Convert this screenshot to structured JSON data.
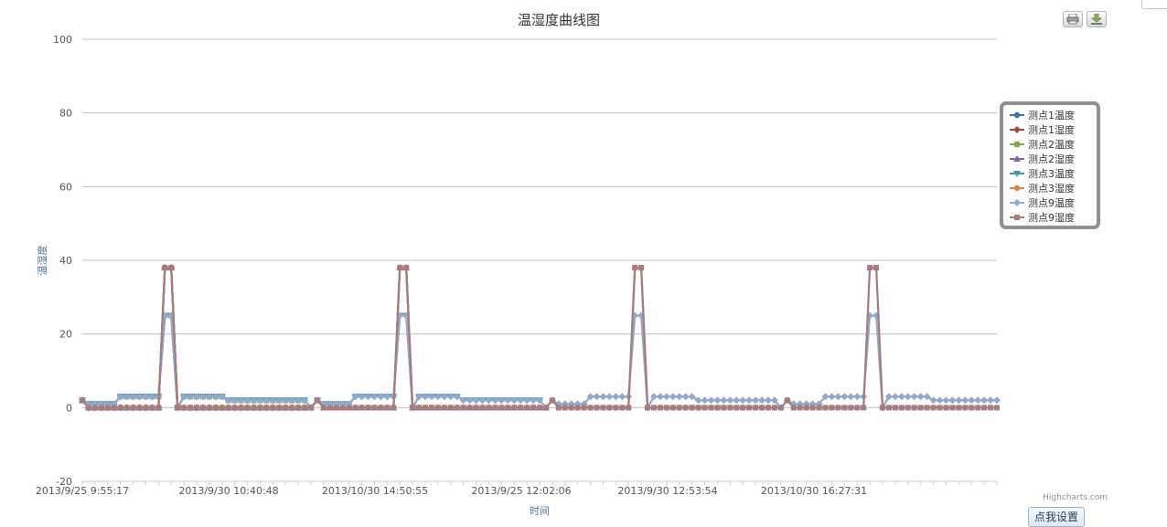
{
  "chart_data": {
    "type": "line",
    "title": "温湿度曲线图",
    "ylabel": "温湿度",
    "xlabel": "时间",
    "ylim": [
      -20,
      100
    ],
    "yticks": [
      -20,
      0,
      20,
      40,
      60,
      80,
      100
    ],
    "grid": true,
    "legend_position": "right",
    "x_tick_labels": [
      "2013/9/25 9:55:17",
      "2013/9/30 10:40:48",
      "2013/10/30 14:50:55",
      "2013/9/25 12:02:06",
      "2013/9/30 12:53:54",
      "2013/10/30 16:27:31"
    ],
    "point_count": 145,
    "peaks": {
      "temperature_peak_value": 25,
      "humidity_peak_value": 38,
      "peak_indices": [
        [
          13,
          14
        ],
        [
          50,
          51
        ],
        [
          87,
          88
        ],
        [
          124,
          125
        ]
      ],
      "base_humidity": 0,
      "start_value": 2,
      "dips": [
        37,
        74,
        111
      ]
    },
    "temperature_segments": [
      {
        "from": 0,
        "to": 5,
        "value": 1
      },
      {
        "from": 6,
        "to": 12,
        "value": 3
      },
      {
        "from": 16,
        "to": 22,
        "value": 3
      },
      {
        "from": 23,
        "to": 35,
        "value": 2
      },
      {
        "from": 38,
        "to": 42,
        "value": 1
      },
      {
        "from": 43,
        "to": 49,
        "value": 3
      },
      {
        "from": 53,
        "to": 59,
        "value": 3
      },
      {
        "from": 60,
        "to": 72,
        "value": 2
      },
      {
        "from": 75,
        "to": 79,
        "value": 1
      },
      {
        "from": 80,
        "to": 86,
        "value": 3
      },
      {
        "from": 90,
        "to": 96,
        "value": 3
      },
      {
        "from": 97,
        "to": 109,
        "value": 2
      },
      {
        "from": 112,
        "to": 116,
        "value": 1
      },
      {
        "from": 117,
        "to": 123,
        "value": 3
      },
      {
        "from": 127,
        "to": 133,
        "value": 3
      },
      {
        "from": 134,
        "to": 144,
        "value": 2
      }
    ],
    "series": [
      {
        "name": "测点1温度",
        "color": "#4572A7",
        "marker": "circle",
        "kind": "temperature",
        "end": 35
      },
      {
        "name": "测点1湿度",
        "color": "#AA4643",
        "marker": "diamond",
        "kind": "humidity",
        "end": 36
      },
      {
        "name": "测点2温度",
        "color": "#89A54E",
        "marker": "square",
        "kind": "temperature",
        "end": 35
      },
      {
        "name": "测点2湿度",
        "color": "#80699B",
        "marker": "triangle",
        "kind": "humidity",
        "end": 73
      },
      {
        "name": "测点3温度",
        "color": "#3D96AE",
        "marker": "triangle-down",
        "kind": "temperature",
        "end": 72
      },
      {
        "name": "测点3湿度",
        "color": "#DB843D",
        "marker": "circle",
        "kind": "humidity",
        "end": 110
      },
      {
        "name": "测点9温度",
        "color": "#92A8CD",
        "marker": "diamond",
        "kind": "temperature",
        "end": 144
      },
      {
        "name": "测点9湿度",
        "color": "#A47D7C",
        "marker": "square",
        "kind": "humidity",
        "end": 144
      }
    ]
  },
  "ui": {
    "credit": "Highcharts.com",
    "settings_button": "点我设置",
    "print_icon": "printer-icon",
    "download_icon": "download-icon"
  }
}
